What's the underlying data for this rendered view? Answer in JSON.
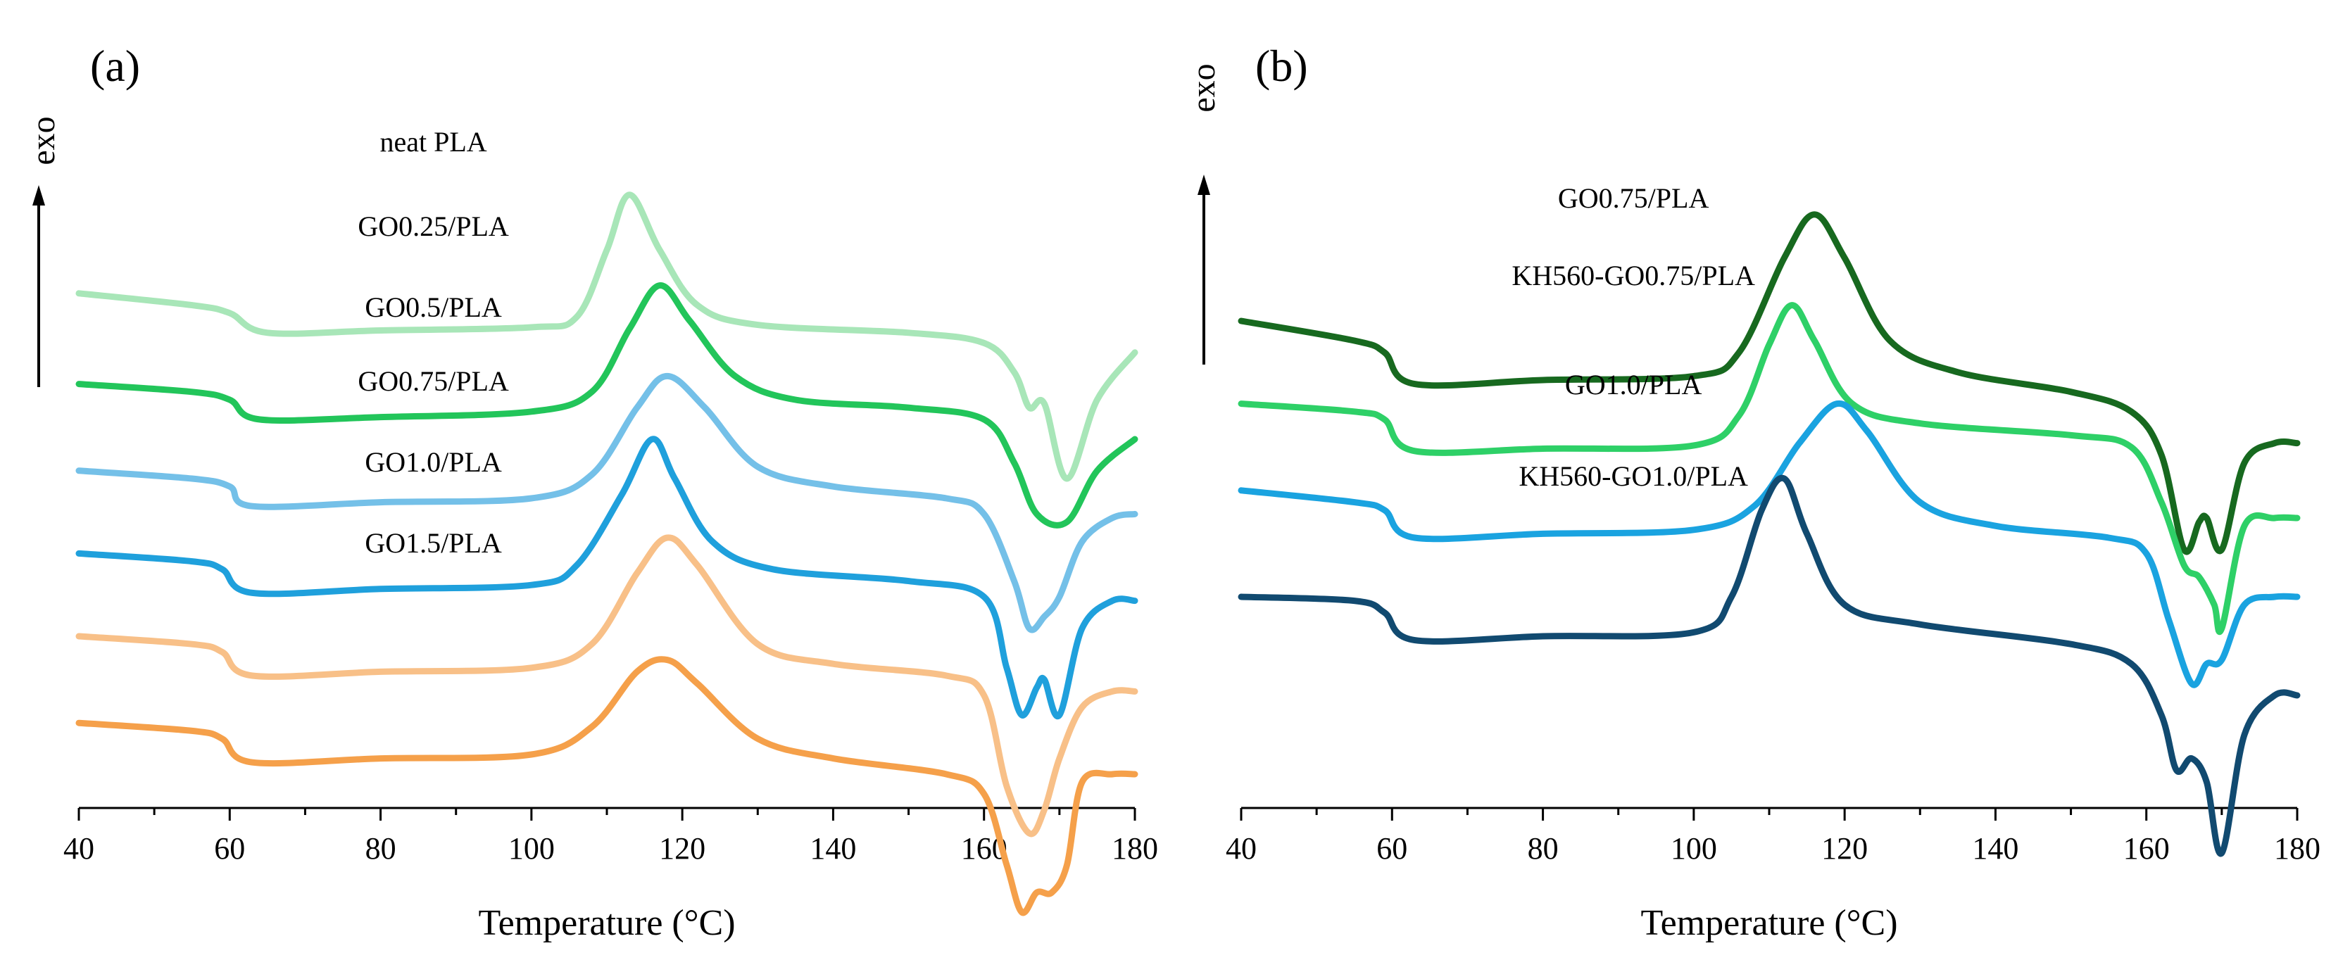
{
  "chart_data": [
    {
      "panel": "(a)",
      "type": "line",
      "xlabel": "Temperature (°C)",
      "ylabel": "exo",
      "xlim": [
        40,
        180
      ],
      "xticks": [
        40,
        60,
        80,
        100,
        120,
        140,
        160,
        180
      ],
      "series": [
        {
          "name": "neat PLA",
          "color": "#a8e6b8",
          "points": [
            [
              40,
              2.35
            ],
            [
              55,
              2.2
            ],
            [
              60,
              2.1
            ],
            [
              65,
              1.85
            ],
            [
              80,
              1.88
            ],
            [
              100,
              1.92
            ],
            [
              106,
              2.05
            ],
            [
              110,
              2.9
            ],
            [
              113,
              3.6
            ],
            [
              117,
              2.9
            ],
            [
              122,
              2.2
            ],
            [
              130,
              1.95
            ],
            [
              150,
              1.85
            ],
            [
              160,
              1.72
            ],
            [
              164,
              1.35
            ],
            [
              166,
              0.9
            ],
            [
              168,
              0.95
            ],
            [
              171,
              0.0
            ],
            [
              175,
              1.0
            ],
            [
              180,
              1.6
            ]
          ]
        },
        {
          "name": "GO0.25/PLA",
          "color": "#22c55a",
          "points": [
            [
              40,
              1.2
            ],
            [
              55,
              1.1
            ],
            [
              60,
              1.0
            ],
            [
              64,
              0.75
            ],
            [
              80,
              0.78
            ],
            [
              100,
              0.85
            ],
            [
              108,
              1.1
            ],
            [
              113,
              1.9
            ],
            [
              117,
              2.45
            ],
            [
              121,
              2.0
            ],
            [
              127,
              1.3
            ],
            [
              135,
              1.0
            ],
            [
              150,
              0.9
            ],
            [
              160,
              0.75
            ],
            [
              164,
              0.2
            ],
            [
              167,
              -0.45
            ],
            [
              171,
              -0.55
            ],
            [
              175,
              0.1
            ],
            [
              180,
              0.5
            ]
          ]
        },
        {
          "name": "GO0.5/PLA",
          "color": "#74c0e8",
          "points": [
            [
              40,
              0.1
            ],
            [
              55,
              0.0
            ],
            [
              60,
              -0.1
            ],
            [
              63,
              -0.35
            ],
            [
              80,
              -0.3
            ],
            [
              100,
              -0.25
            ],
            [
              108,
              0.05
            ],
            [
              114,
              0.9
            ],
            [
              118,
              1.3
            ],
            [
              123,
              0.9
            ],
            [
              130,
              0.15
            ],
            [
              140,
              -0.1
            ],
            [
              155,
              -0.25
            ],
            [
              160,
              -0.45
            ],
            [
              164,
              -1.3
            ],
            [
              166,
              -1.9
            ],
            [
              168,
              -1.75
            ],
            [
              170,
              -1.5
            ],
            [
              173,
              -0.8
            ],
            [
              177,
              -0.5
            ],
            [
              180,
              -0.45
            ]
          ]
        },
        {
          "name": "GO0.75/PLA",
          "color": "#1fa0dc",
          "points": [
            [
              40,
              -0.95
            ],
            [
              55,
              -1.05
            ],
            [
              59,
              -1.15
            ],
            [
              63,
              -1.45
            ],
            [
              80,
              -1.4
            ],
            [
              100,
              -1.35
            ],
            [
              106,
              -1.1
            ],
            [
              112,
              -0.2
            ],
            [
              116,
              0.5
            ],
            [
              119,
              0.0
            ],
            [
              124,
              -0.8
            ],
            [
              132,
              -1.15
            ],
            [
              150,
              -1.3
            ],
            [
              160,
              -1.5
            ],
            [
              163,
              -2.4
            ],
            [
              165,
              -3.0
            ],
            [
              167,
              -2.65
            ],
            [
              168,
              -2.55
            ],
            [
              170,
              -3.0
            ],
            [
              173,
              -1.9
            ],
            [
              177,
              -1.55
            ],
            [
              180,
              -1.55
            ]
          ]
        },
        {
          "name": "GO1.0/PLA",
          "color": "#f8c088",
          "points": [
            [
              40,
              -2.0
            ],
            [
              55,
              -2.1
            ],
            [
              59,
              -2.2
            ],
            [
              63,
              -2.5
            ],
            [
              80,
              -2.45
            ],
            [
              100,
              -2.4
            ],
            [
              108,
              -2.1
            ],
            [
              114,
              -1.2
            ],
            [
              118,
              -0.75
            ],
            [
              122,
              -1.1
            ],
            [
              130,
              -2.1
            ],
            [
              140,
              -2.35
            ],
            [
              155,
              -2.5
            ],
            [
              160,
              -2.75
            ],
            [
              163,
              -3.9
            ],
            [
              166,
              -4.5
            ],
            [
              168,
              -4.2
            ],
            [
              170,
              -3.55
            ],
            [
              173,
              -2.9
            ],
            [
              177,
              -2.7
            ],
            [
              180,
              -2.7
            ]
          ]
        },
        {
          "name": "GO1.5/PLA",
          "color": "#f5a04a",
          "points": [
            [
              40,
              -3.1
            ],
            [
              55,
              -3.2
            ],
            [
              59,
              -3.3
            ],
            [
              63,
              -3.6
            ],
            [
              80,
              -3.55
            ],
            [
              100,
              -3.5
            ],
            [
              108,
              -3.15
            ],
            [
              114,
              -2.45
            ],
            [
              118,
              -2.3
            ],
            [
              122,
              -2.6
            ],
            [
              130,
              -3.3
            ],
            [
              140,
              -3.55
            ],
            [
              155,
              -3.75
            ],
            [
              160,
              -4.0
            ],
            [
              163,
              -4.9
            ],
            [
              165,
              -5.5
            ],
            [
              167,
              -5.25
            ],
            [
              169,
              -5.25
            ],
            [
              171,
              -4.9
            ],
            [
              173,
              -3.85
            ],
            [
              177,
              -3.75
            ],
            [
              180,
              -3.75
            ]
          ]
        }
      ]
    },
    {
      "panel": "(b)",
      "type": "line",
      "xlabel": "Temperature (°C)",
      "ylabel": "exo",
      "xlim": [
        40,
        180
      ],
      "xticks": [
        40,
        60,
        80,
        100,
        120,
        140,
        160,
        180
      ],
      "series": [
        {
          "name": "GO0.75/PLA",
          "color": "#17691f",
          "points": [
            [
              40,
              2.0
            ],
            [
              55,
              1.75
            ],
            [
              59,
              1.6
            ],
            [
              63,
              1.2
            ],
            [
              80,
              1.25
            ],
            [
              100,
              1.3
            ],
            [
              106,
              1.6
            ],
            [
              112,
              2.8
            ],
            [
              116,
              3.35
            ],
            [
              120,
              2.8
            ],
            [
              126,
              1.75
            ],
            [
              135,
              1.35
            ],
            [
              150,
              1.1
            ],
            [
              158,
              0.85
            ],
            [
              162,
              0.3
            ],
            [
              165,
              -0.9
            ],
            [
              167,
              -0.55
            ],
            [
              168,
              -0.5
            ],
            [
              170,
              -0.9
            ],
            [
              173,
              0.2
            ],
            [
              177,
              0.45
            ],
            [
              180,
              0.45
            ]
          ]
        },
        {
          "name": "KH560-GO0.75/PLA",
          "color": "#2ed067",
          "points": [
            [
              40,
              0.95
            ],
            [
              55,
              0.85
            ],
            [
              59,
              0.75
            ],
            [
              63,
              0.35
            ],
            [
              80,
              0.38
            ],
            [
              100,
              0.42
            ],
            [
              106,
              0.8
            ],
            [
              110,
              1.7
            ],
            [
              113,
              2.2
            ],
            [
              116,
              1.75
            ],
            [
              121,
              0.95
            ],
            [
              130,
              0.7
            ],
            [
              150,
              0.55
            ],
            [
              158,
              0.4
            ],
            [
              162,
              -0.3
            ],
            [
              165,
              -1.1
            ],
            [
              167,
              -1.25
            ],
            [
              169,
              -1.6
            ],
            [
              170,
              -1.9
            ],
            [
              173,
              -0.6
            ],
            [
              177,
              -0.5
            ],
            [
              180,
              -0.5
            ]
          ]
        },
        {
          "name": "GO1.0/PLA",
          "color": "#1aa3e0",
          "points": [
            [
              40,
              -0.15
            ],
            [
              55,
              -0.3
            ],
            [
              59,
              -0.4
            ],
            [
              63,
              -0.75
            ],
            [
              80,
              -0.7
            ],
            [
              100,
              -0.65
            ],
            [
              108,
              -0.35
            ],
            [
              114,
              0.45
            ],
            [
              119,
              0.95
            ],
            [
              123,
              0.6
            ],
            [
              130,
              -0.3
            ],
            [
              140,
              -0.6
            ],
            [
              155,
              -0.75
            ],
            [
              160,
              -0.95
            ],
            [
              163,
              -1.8
            ],
            [
              166,
              -2.6
            ],
            [
              168,
              -2.35
            ],
            [
              170,
              -2.3
            ],
            [
              173,
              -1.6
            ],
            [
              177,
              -1.5
            ],
            [
              180,
              -1.5
            ]
          ]
        },
        {
          "name": "KH560-GO1.0/PLA",
          "color": "#114a70",
          "points": [
            [
              40,
              -1.5
            ],
            [
              55,
              -1.55
            ],
            [
              59,
              -1.7
            ],
            [
              63,
              -2.05
            ],
            [
              80,
              -2.0
            ],
            [
              100,
              -1.95
            ],
            [
              105,
              -1.5
            ],
            [
              109,
              -0.4
            ],
            [
              112,
              0.0
            ],
            [
              115,
              -0.7
            ],
            [
              120,
              -1.6
            ],
            [
              130,
              -1.85
            ],
            [
              150,
              -2.1
            ],
            [
              158,
              -2.35
            ],
            [
              162,
              -3.0
            ],
            [
              164,
              -3.7
            ],
            [
              166,
              -3.55
            ],
            [
              168,
              -3.85
            ],
            [
              170,
              -4.75
            ],
            [
              173,
              -3.25
            ],
            [
              177,
              -2.75
            ],
            [
              180,
              -2.75
            ]
          ]
        }
      ]
    }
  ],
  "labels": {
    "panel_a": "(a)",
    "panel_b": "(b)",
    "exo": "exo",
    "xlabel": "Temperature (°C)"
  }
}
